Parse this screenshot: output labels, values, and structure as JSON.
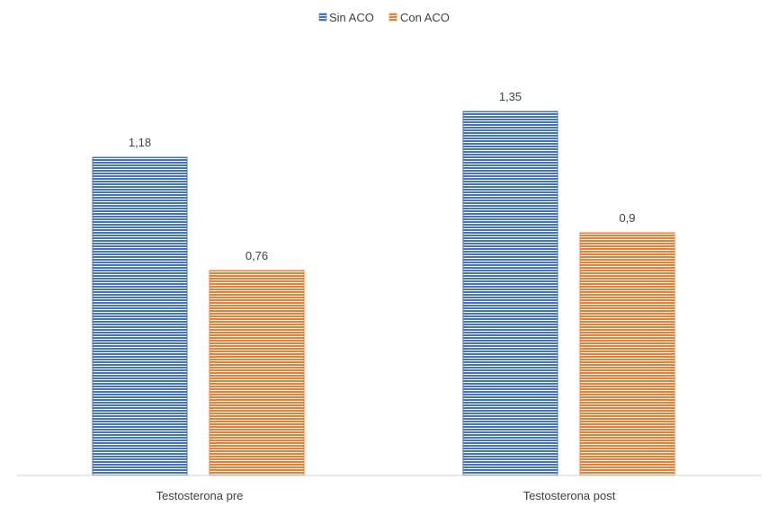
{
  "chart_data": {
    "type": "bar",
    "categories": [
      "Testosterona pre",
      "Testosterona post"
    ],
    "series": [
      {
        "name": "Sin ACO",
        "values": [
          1.18,
          1.35
        ],
        "labels": [
          "1,18",
          "1,35"
        ],
        "color": "#4472C4"
      },
      {
        "name": "Con ACO",
        "values": [
          0.76,
          0.9
        ],
        "labels": [
          "0,76",
          "0,9"
        ],
        "color": "#ED7D31"
      }
    ],
    "ylim": [
      0,
      1.5
    ],
    "legend_position": "top-center",
    "grid": false,
    "bar_fill": "horizontal-stripes"
  }
}
